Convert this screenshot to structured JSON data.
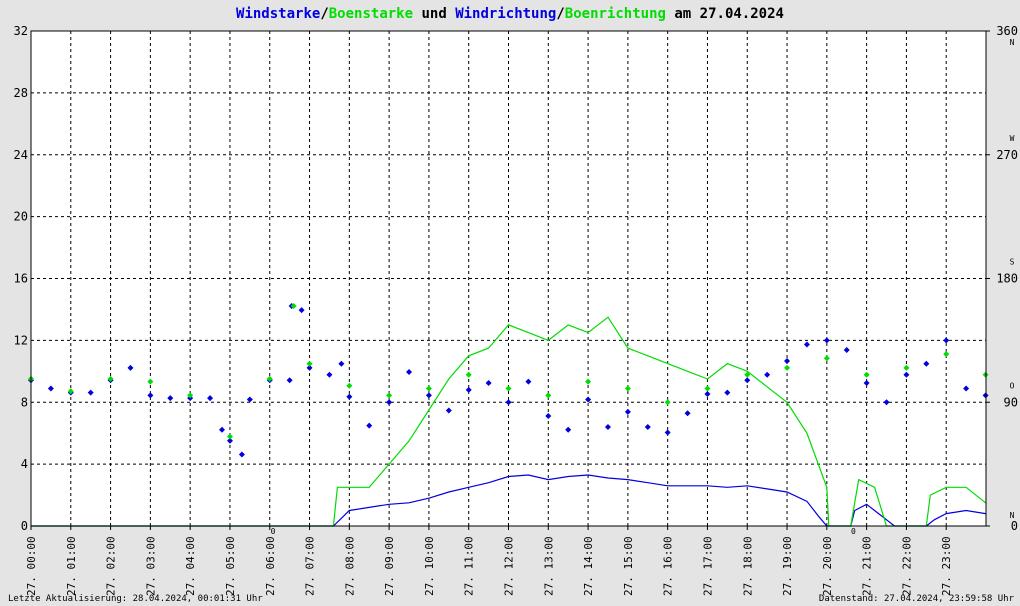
{
  "title": {
    "part1": "Windstarke",
    "sep1": "/",
    "part2": "Boenstarke",
    "part3": " und ",
    "part4": "Windrichtung",
    "sep2": "/",
    "part5": "Boenrichtung",
    "part6": " am 27.04.2024"
  },
  "footer": {
    "left": "Letzte Aktualisierung: 28.04.2024, 00:01:31 Uhr",
    "right": "Datenstand: 27.04.2024, 23:59:58 Uhr"
  },
  "colors": {
    "wind": "#0000e0",
    "gust": "#00dd00",
    "marker": "#e00000",
    "background": "#e4e4e4",
    "plot_background": "#ffffff"
  },
  "chart_data": {
    "type": "line",
    "ylim": [
      0,
      32
    ],
    "y_ticks": [
      "0",
      "4",
      "8",
      "12",
      "16",
      "20",
      "24",
      "28",
      "32"
    ],
    "y2lim": [
      0,
      360
    ],
    "y2_ticks": [
      "0",
      "90",
      "180",
      "270",
      "360"
    ],
    "y2_compass": [
      "N",
      "O",
      "S",
      "W",
      "N"
    ],
    "x_ticks": [
      "27. 00:00",
      "27. 01:00",
      "27. 02:00",
      "27. 03:00",
      "27. 04:00",
      "27. 05:00",
      "27. 06:00",
      "27. 07:00",
      "27. 08:00",
      "27. 09:00",
      "27. 10:00",
      "27. 11:00",
      "27. 12:00",
      "27. 13:00",
      "27. 14:00",
      "27. 15:00",
      "27. 16:00",
      "27. 17:00",
      "27. 18:00",
      "27. 19:00",
      "27. 20:00",
      "27. 21:00",
      "27. 22:00",
      "27. 23:00"
    ],
    "red_markers": [
      {
        "time": "06:05",
        "label": "0"
      },
      {
        "time": "20:40",
        "label": "0"
      }
    ],
    "grid": true,
    "series": [
      {
        "name": "Windstarke",
        "color": "#0000e0",
        "points": [
          [
            0.0,
            0
          ],
          [
            7.6,
            0
          ],
          [
            7.8,
            0.5
          ],
          [
            8.0,
            1.0
          ],
          [
            8.5,
            1.2
          ],
          [
            9.0,
            1.4
          ],
          [
            9.5,
            1.5
          ],
          [
            10.0,
            1.8
          ],
          [
            10.5,
            2.2
          ],
          [
            11.0,
            2.5
          ],
          [
            11.5,
            2.8
          ],
          [
            12.0,
            3.2
          ],
          [
            12.5,
            3.3
          ],
          [
            13.0,
            3.0
          ],
          [
            13.5,
            3.2
          ],
          [
            14.0,
            3.3
          ],
          [
            14.5,
            3.1
          ],
          [
            15.0,
            3.0
          ],
          [
            15.5,
            2.8
          ],
          [
            16.0,
            2.6
          ],
          [
            16.5,
            2.6
          ],
          [
            17.0,
            2.6
          ],
          [
            17.5,
            2.5
          ],
          [
            18.0,
            2.6
          ],
          [
            18.5,
            2.4
          ],
          [
            19.0,
            2.2
          ],
          [
            19.5,
            1.6
          ],
          [
            19.8,
            0.6
          ],
          [
            20.0,
            0
          ],
          [
            20.6,
            0
          ],
          [
            20.7,
            1.0
          ],
          [
            21.0,
            1.4
          ],
          [
            21.3,
            0.8
          ],
          [
            21.7,
            0
          ],
          [
            22.5,
            0
          ],
          [
            22.7,
            0.4
          ],
          [
            23.0,
            0.8
          ],
          [
            23.5,
            1.0
          ],
          [
            23.99,
            0.8
          ]
        ]
      },
      {
        "name": "Boenstarke",
        "color": "#00dd00",
        "points": [
          [
            0.0,
            0
          ],
          [
            7.6,
            0
          ],
          [
            7.7,
            2.5
          ],
          [
            8.0,
            2.5
          ],
          [
            8.5,
            2.5
          ],
          [
            9.0,
            4.0
          ],
          [
            9.5,
            5.5
          ],
          [
            10.0,
            7.5
          ],
          [
            10.5,
            9.5
          ],
          [
            11.0,
            11.0
          ],
          [
            11.5,
            11.5
          ],
          [
            12.0,
            13.0
          ],
          [
            12.5,
            12.5
          ],
          [
            13.0,
            12.0
          ],
          [
            13.5,
            13.0
          ],
          [
            14.0,
            12.5
          ],
          [
            14.5,
            13.5
          ],
          [
            15.0,
            11.5
          ],
          [
            15.5,
            11.0
          ],
          [
            16.0,
            10.5
          ],
          [
            16.5,
            10.0
          ],
          [
            17.0,
            9.5
          ],
          [
            17.5,
            10.5
          ],
          [
            18.0,
            10.0
          ],
          [
            18.5,
            9.0
          ],
          [
            19.0,
            8.0
          ],
          [
            19.5,
            6.0
          ],
          [
            20.0,
            2.5
          ],
          [
            20.05,
            0
          ],
          [
            20.6,
            0
          ],
          [
            20.8,
            3.0
          ],
          [
            21.2,
            2.5
          ],
          [
            21.5,
            0
          ],
          [
            22.5,
            0
          ],
          [
            22.6,
            2.0
          ],
          [
            23.0,
            2.5
          ],
          [
            23.5,
            2.5
          ],
          [
            23.99,
            1.5
          ]
        ]
      },
      {
        "name": "Windrichtung",
        "color": "#0000e0",
        "points": [
          [
            0.0,
            106
          ],
          [
            0.5,
            100
          ],
          [
            1.0,
            97
          ],
          [
            1.5,
            97
          ],
          [
            2.0,
            106
          ],
          [
            2.5,
            115
          ],
          [
            3.0,
            95
          ],
          [
            3.5,
            93
          ],
          [
            4.0,
            93
          ],
          [
            4.5,
            93
          ],
          [
            4.8,
            70
          ],
          [
            5.0,
            62
          ],
          [
            5.3,
            52
          ],
          [
            5.5,
            92
          ],
          [
            6.0,
            106
          ],
          [
            6.5,
            106
          ],
          [
            6.55,
            160
          ],
          [
            6.8,
            157
          ],
          [
            7.0,
            115
          ],
          [
            7.5,
            110
          ],
          [
            7.8,
            118
          ],
          [
            8.0,
            94
          ],
          [
            8.5,
            73
          ],
          [
            9.0,
            90
          ],
          [
            9.5,
            112
          ],
          [
            10.0,
            95
          ],
          [
            10.5,
            84
          ],
          [
            11.0,
            99
          ],
          [
            11.5,
            104
          ],
          [
            12.0,
            90
          ],
          [
            12.5,
            105
          ],
          [
            13.0,
            80
          ],
          [
            13.5,
            70
          ],
          [
            14.0,
            92
          ],
          [
            14.5,
            72
          ],
          [
            15.0,
            83
          ],
          [
            15.5,
            72
          ],
          [
            16.0,
            68
          ],
          [
            16.5,
            82
          ],
          [
            17.0,
            96
          ],
          [
            17.5,
            97
          ],
          [
            18.0,
            106
          ],
          [
            18.5,
            110
          ],
          [
            19.0,
            120
          ],
          [
            19.5,
            132
          ],
          [
            20.0,
            135
          ],
          [
            20.5,
            128
          ],
          [
            21.0,
            104
          ],
          [
            21.5,
            90
          ],
          [
            22.0,
            110
          ],
          [
            22.5,
            118
          ],
          [
            23.0,
            135
          ],
          [
            23.5,
            100
          ],
          [
            23.99,
            95
          ]
        ]
      },
      {
        "name": "Boenrichtung",
        "color": "#00dd00",
        "points": [
          [
            0.0,
            107
          ],
          [
            1.0,
            98
          ],
          [
            2.0,
            107
          ],
          [
            3.0,
            105
          ],
          [
            4.0,
            95
          ],
          [
            5.0,
            65
          ],
          [
            6.0,
            107
          ],
          [
            6.6,
            160
          ],
          [
            7.0,
            118
          ],
          [
            8.0,
            102
          ],
          [
            9.0,
            95
          ],
          [
            10.0,
            100
          ],
          [
            11.0,
            110
          ],
          [
            12.0,
            100
          ],
          [
            13.0,
            95
          ],
          [
            14.0,
            105
          ],
          [
            15.0,
            100
          ],
          [
            16.0,
            90
          ],
          [
            17.0,
            100
          ],
          [
            18.0,
            110
          ],
          [
            19.0,
            115
          ],
          [
            20.0,
            122
          ],
          [
            21.0,
            110
          ],
          [
            22.0,
            115
          ],
          [
            23.0,
            125
          ],
          [
            23.99,
            110
          ]
        ]
      }
    ]
  }
}
